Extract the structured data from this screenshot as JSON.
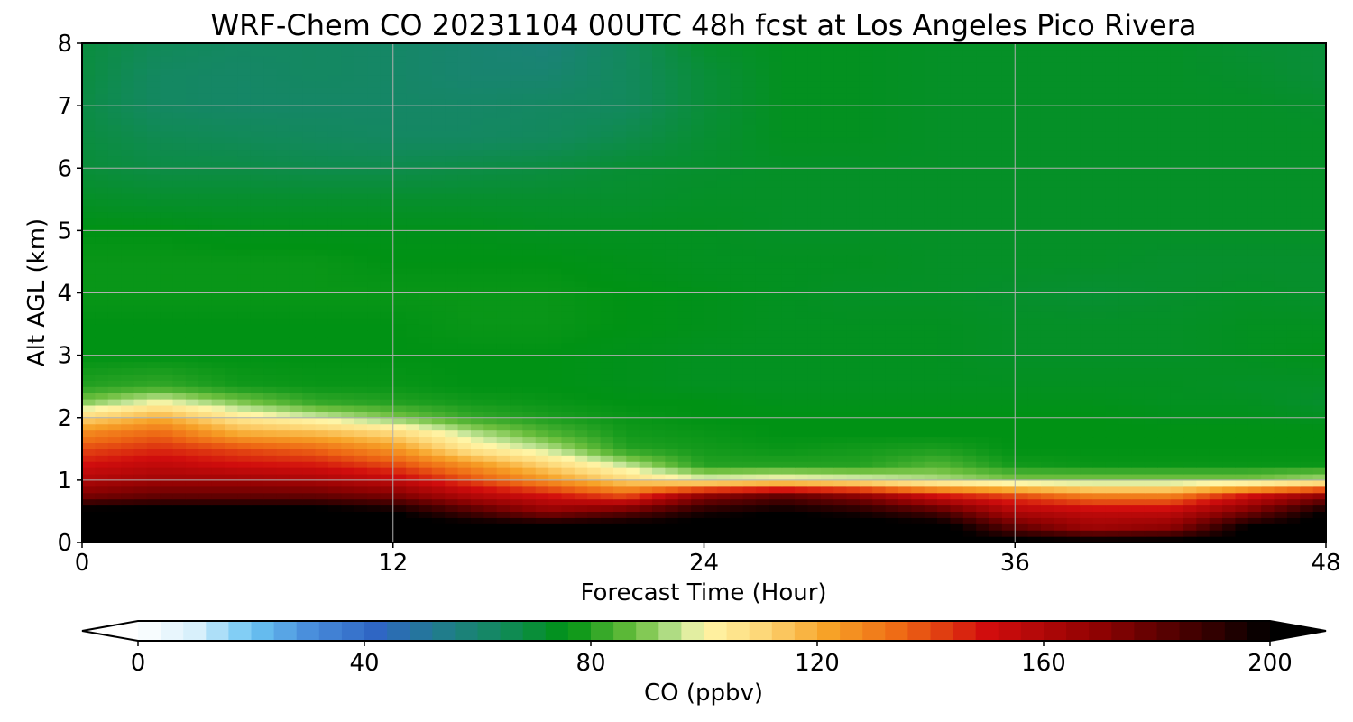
{
  "chart_data": {
    "type": "heatmap",
    "title": "WRF-Chem CO  20231104 00UTC 48h fcst at Los Angeles Pico Rivera",
    "xlabel": "Forecast Time (Hour)",
    "ylabel": "Alt AGL (km)",
    "xlim": [
      0,
      48
    ],
    "ylim": [
      0,
      8
    ],
    "xticks": [
      "0",
      "12",
      "24",
      "36",
      "48"
    ],
    "yticks": [
      "0",
      "1",
      "2",
      "3",
      "4",
      "5",
      "6",
      "7",
      "8"
    ],
    "grid": true,
    "x_hours": [
      0,
      3,
      6,
      9,
      12,
      15,
      18,
      21,
      24,
      27,
      30,
      33,
      36,
      39,
      42,
      45,
      48
    ],
    "y_km": [
      0,
      0.25,
      0.5,
      0.75,
      1,
      1.25,
      1.5,
      1.75,
      2,
      2.25,
      2.5,
      3,
      3.5,
      4,
      4.5,
      5,
      5.5,
      6,
      6.5,
      7,
      7.5,
      8
    ],
    "values_ppbv": [
      [
        205,
        205,
        205,
        205,
        205,
        205,
        205,
        205,
        205,
        205,
        205,
        205,
        205,
        205,
        205,
        205,
        205
      ],
      [
        205,
        205,
        205,
        205,
        205,
        205,
        205,
        205,
        205,
        205,
        205,
        205,
        180,
        165,
        170,
        200,
        205
      ],
      [
        205,
        205,
        205,
        205,
        200,
        185,
        170,
        180,
        195,
        200,
        195,
        185,
        160,
        155,
        155,
        175,
        200
      ],
      [
        175,
        180,
        180,
        180,
        175,
        160,
        150,
        140,
        170,
        180,
        170,
        150,
        140,
        130,
        130,
        150,
        170
      ],
      [
        160,
        165,
        165,
        162,
        155,
        140,
        125,
        110,
        100,
        103,
        100,
        95,
        90,
        90,
        90,
        90,
        95
      ],
      [
        150,
        155,
        150,
        148,
        140,
        125,
        110,
        95,
        80,
        80,
        80,
        85,
        78,
        77,
        77,
        77,
        77
      ],
      [
        140,
        145,
        140,
        135,
        125,
        105,
        95,
        80,
        78,
        77,
        78,
        79,
        76,
        76,
        76,
        76,
        76
      ],
      [
        128,
        135,
        120,
        117,
        110,
        95,
        85,
        78,
        77,
        76,
        76,
        76,
        76,
        76,
        76,
        76,
        76
      ],
      [
        110,
        120,
        105,
        98,
        90,
        82,
        79,
        77,
        76,
        76,
        76,
        76,
        76,
        76,
        75,
        75,
        74
      ],
      [
        90,
        100,
        90,
        82,
        80,
        78,
        77,
        76,
        76,
        75,
        75,
        75,
        75,
        75,
        74,
        74,
        72
      ],
      [
        80,
        82,
        78,
        77,
        77,
        76,
        76,
        75,
        74,
        74,
        74,
        74,
        74,
        74,
        74,
        73,
        73
      ],
      [
        76,
        76,
        76,
        76,
        76,
        76,
        76,
        75,
        74,
        74,
        74,
        74,
        73,
        73,
        73,
        74,
        75
      ],
      [
        76,
        76,
        76,
        76,
        76,
        77,
        77,
        76,
        75,
        74,
        74,
        74,
        73,
        73,
        73,
        74,
        74
      ],
      [
        77,
        77,
        77,
        77,
        77,
        77,
        77,
        76,
        75,
        74,
        73,
        73,
        72,
        71,
        72,
        73,
        72
      ],
      [
        77,
        77,
        77,
        77,
        76,
        76,
        76,
        75,
        74,
        74,
        74,
        73,
        73,
        73,
        72,
        72,
        72
      ],
      [
        76,
        76,
        75,
        75,
        75,
        75,
        74,
        74,
        74,
        73,
        73,
        73,
        73,
        73,
        73,
        73,
        73
      ],
      [
        73,
        72,
        72,
        72,
        72,
        72,
        72,
        72,
        73,
        73,
        73,
        73,
        73,
        73,
        73,
        73,
        73
      ],
      [
        70,
        68,
        68,
        67,
        67,
        68,
        69,
        71,
        72,
        73,
        73,
        73,
        73,
        73,
        73,
        73,
        73
      ],
      [
        69,
        66,
        65,
        64,
        63,
        63,
        64,
        67,
        71,
        74,
        74,
        73,
        73,
        73,
        73,
        73,
        73
      ],
      [
        68,
        63,
        62,
        62,
        62,
        62,
        63,
        64,
        70,
        74,
        74,
        73,
        73,
        73,
        73,
        73,
        72
      ],
      [
        69,
        63,
        62,
        63,
        62,
        60,
        60,
        64,
        70,
        74,
        74,
        73,
        73,
        73,
        73,
        72,
        70
      ],
      [
        69,
        65,
        63,
        63,
        62,
        60,
        58,
        64,
        72,
        74,
        74,
        73,
        73,
        73,
        73,
        71,
        70
      ]
    ],
    "colorbar": {
      "label": "CO  (ppbv)",
      "min": 0,
      "max": 200,
      "ticks": [
        "0",
        "40",
        "80",
        "120",
        "160",
        "200"
      ],
      "extend": "both"
    },
    "colormap_stops": [
      {
        "v": 0,
        "c": "#ffffff"
      },
      {
        "v": 10,
        "c": "#d8f0fb"
      },
      {
        "v": 20,
        "c": "#6cc6f3"
      },
      {
        "v": 30,
        "c": "#4a8fdc"
      },
      {
        "v": 42,
        "c": "#2f66c4"
      },
      {
        "v": 55,
        "c": "#1f7f86"
      },
      {
        "v": 65,
        "c": "#118a58"
      },
      {
        "v": 76,
        "c": "#009214"
      },
      {
        "v": 88,
        "c": "#6dbf3e"
      },
      {
        "v": 96,
        "c": "#c5e69a"
      },
      {
        "v": 100,
        "c": "#fff6a8"
      },
      {
        "v": 110,
        "c": "#fdd879"
      },
      {
        "v": 122,
        "c": "#f7a227"
      },
      {
        "v": 135,
        "c": "#ee6814"
      },
      {
        "v": 150,
        "c": "#d10d0d"
      },
      {
        "v": 170,
        "c": "#8e0202"
      },
      {
        "v": 190,
        "c": "#320000"
      },
      {
        "v": 200,
        "c": "#000000"
      }
    ]
  }
}
